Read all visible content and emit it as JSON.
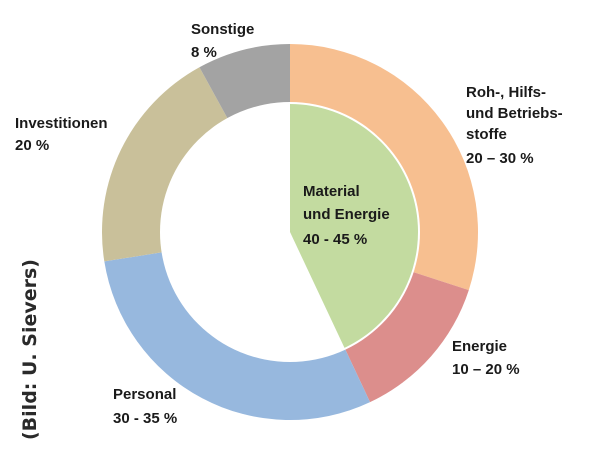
{
  "chart_data": {
    "type": "pie",
    "subtype": "nested-donut",
    "outer_ring": [
      {
        "name": "Roh-, Hilfs- und Betriebsstoffe",
        "label_lines": [
          "Roh-, Hilfs-",
          "und Betriebs-",
          "stoffe",
          "20 – 30 %"
        ],
        "range": "20 – 30 %",
        "share": 0.3,
        "color": "#f7bf90"
      },
      {
        "name": "Energie",
        "label_lines": [
          "Energie",
          "10 – 20 %"
        ],
        "range": "10 – 20 %",
        "share": 0.13,
        "color": "#dc8e8c"
      },
      {
        "name": "Personal",
        "label_lines": [
          "Personal",
          "30 - 35 %"
        ],
        "range": "30 - 35 %",
        "share": 0.295,
        "color": "#97b8de"
      },
      {
        "name": "Investitionen",
        "label_lines": [
          "Investitionen",
          "20 %"
        ],
        "range": "20 %",
        "share": 0.195,
        "color": "#c9c09a"
      },
      {
        "name": "Sonstige",
        "label_lines": [
          "Sonstige",
          "8 %"
        ],
        "range": "8 %",
        "share": 0.08,
        "color": "#a3a3a3"
      }
    ],
    "inner_segment": {
      "name": "Material und Energie",
      "label_lines": [
        "Material",
        "und Energie",
        "40 - 45 %"
      ],
      "range": "40 - 45 %",
      "share": 0.43,
      "color": "#c3dba0"
    },
    "start_angle_deg": 0,
    "direction": "clockwise"
  },
  "credit": "(Bild: U. Sievers)"
}
